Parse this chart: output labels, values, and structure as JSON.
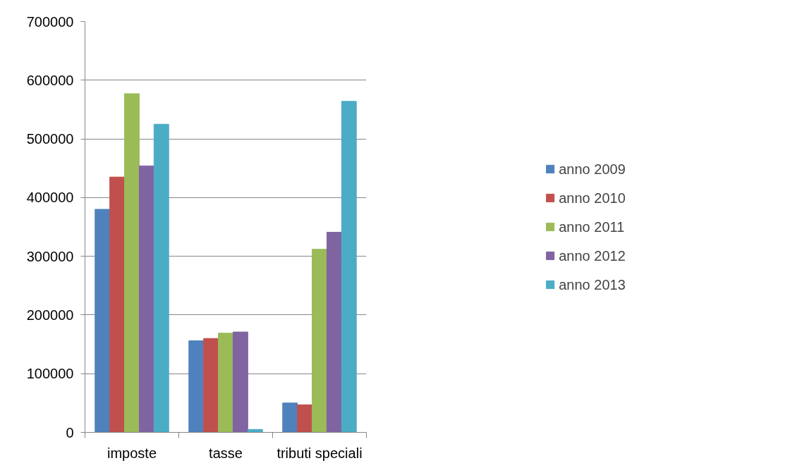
{
  "chart_data": {
    "type": "bar",
    "categories": [
      "imposte",
      "tasse",
      "tributi speciali"
    ],
    "series": [
      {
        "name": "anno 2009",
        "color": "#4f81bd",
        "values": [
          380000,
          156000,
          50000
        ]
      },
      {
        "name": "anno 2010",
        "color": "#c0504d",
        "values": [
          435000,
          160000,
          47000
        ]
      },
      {
        "name": "anno 2011",
        "color": "#9bbb59",
        "values": [
          577000,
          169000,
          312000
        ]
      },
      {
        "name": "anno 2012",
        "color": "#8064a2",
        "values": [
          454000,
          171000,
          341000
        ]
      },
      {
        "name": "anno 2013",
        "color": "#4bacc6",
        "values": [
          525000,
          5000,
          564000
        ]
      }
    ],
    "ylim": [
      0,
      700000
    ],
    "yticks": [
      0,
      100000,
      200000,
      300000,
      400000,
      500000,
      600000,
      700000
    ],
    "grid": "y",
    "legend": "right"
  }
}
